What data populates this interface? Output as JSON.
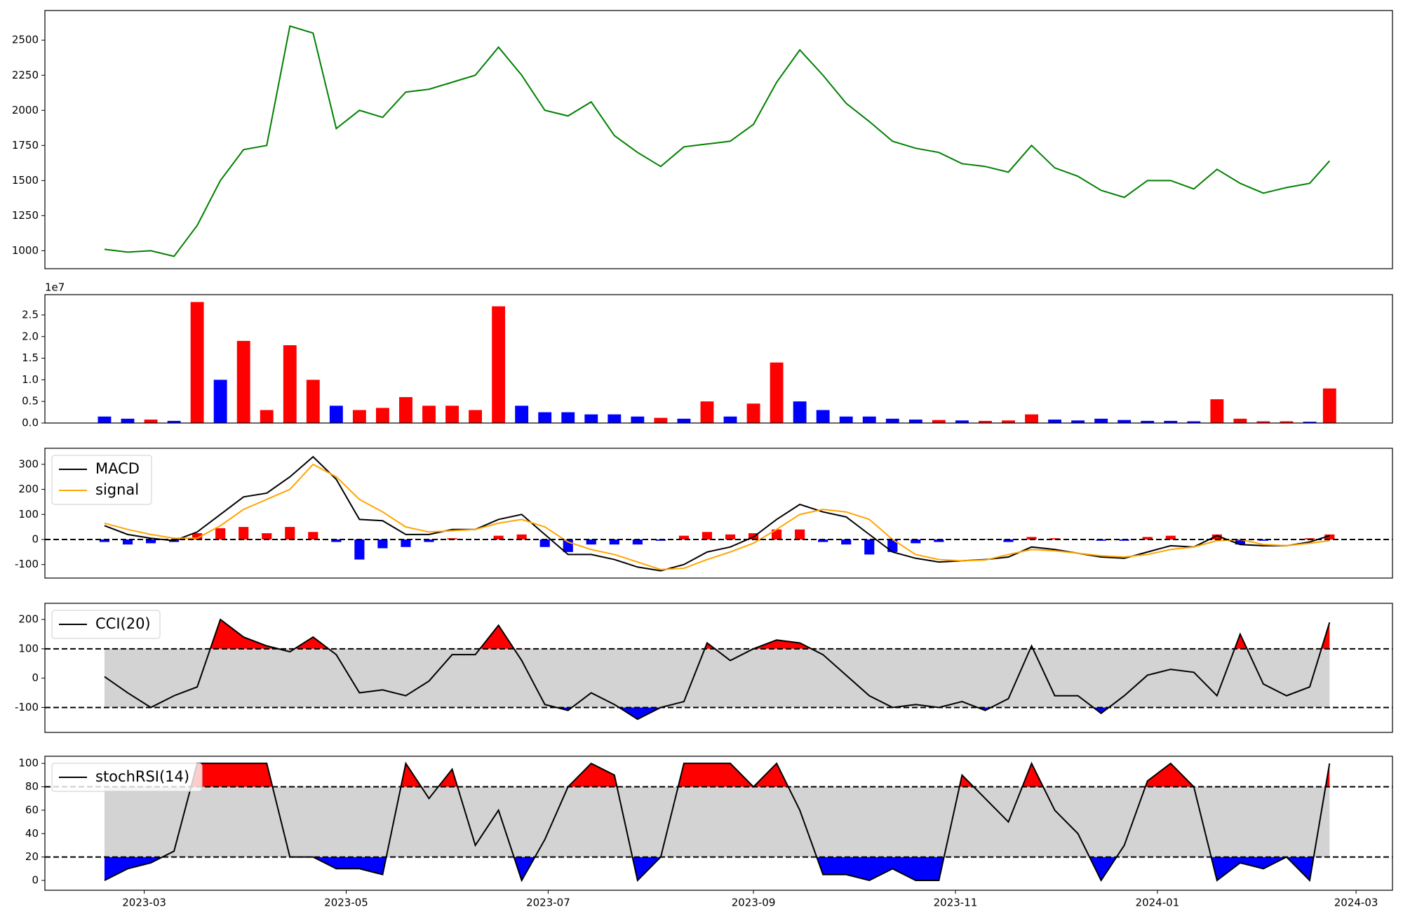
{
  "chart_data": [
    {
      "type": "line",
      "x": [
        19405,
        19412,
        19419,
        19426,
        19433,
        19440,
        19447,
        19454,
        19461,
        19468,
        19475,
        19482,
        19489,
        19496,
        19503,
        19510,
        19517,
        19524,
        19531,
        19538,
        19545,
        19552,
        19559,
        19566,
        19573,
        19580,
        19587,
        19594,
        19601,
        19608,
        19615,
        19622,
        19629,
        19636,
        19643,
        19650,
        19657,
        19664,
        19671,
        19678,
        19685,
        19692,
        19699,
        19706,
        19713,
        19720,
        19727,
        19734,
        19741,
        19748,
        19755,
        19762,
        19769,
        19775
      ],
      "xlim": [
        19387,
        19794
      ],
      "ylim": [
        872,
        2711
      ],
      "yticks": [
        1000,
        1250,
        1500,
        1750,
        2000,
        2250,
        2500
      ],
      "series": [
        {
          "color": "green",
          "values": [
            1010,
            990,
            1000,
            960,
            1180,
            1500,
            1720,
            1750,
            2600,
            2550,
            1870,
            2000,
            1950,
            2130,
            2150,
            2200,
            2250,
            2450,
            2250,
            2000,
            1960,
            2060,
            1820,
            1700,
            1600,
            1740,
            1760,
            1780,
            1900,
            2200,
            2430,
            2250,
            2050,
            1920,
            1780,
            1730,
            1700,
            1620,
            1600,
            1560,
            1750,
            1590,
            1530,
            1430,
            1380,
            1500,
            1500,
            1440,
            1580,
            1480,
            1410,
            1450,
            1480,
            1640
          ]
        }
      ]
    },
    {
      "type": "bar",
      "x": [
        19405,
        19412,
        19419,
        19426,
        19433,
        19440,
        19447,
        19454,
        19461,
        19468,
        19475,
        19482,
        19489,
        19496,
        19503,
        19510,
        19517,
        19524,
        19531,
        19538,
        19545,
        19552,
        19559,
        19566,
        19573,
        19580,
        19587,
        19594,
        19601,
        19608,
        19615,
        19622,
        19629,
        19636,
        19643,
        19650,
        19657,
        19664,
        19671,
        19678,
        19685,
        19692,
        19699,
        19706,
        19713,
        19720,
        19727,
        19734,
        19741,
        19748,
        19755,
        19762,
        19769,
        19775
      ],
      "xlim": [
        19387,
        19794
      ],
      "ylim": [
        0,
        29700000
      ],
      "offset_label": "1e7",
      "yticks": [
        {
          "value": 0,
          "label": "0.0"
        },
        {
          "value": 5000000,
          "label": "0.5"
        },
        {
          "value": 10000000,
          "label": "1.0"
        },
        {
          "value": 15000000,
          "label": "1.5"
        },
        {
          "value": 20000000,
          "label": "2.0"
        },
        {
          "value": 25000000,
          "label": "2.5"
        }
      ],
      "series": [
        {
          "values": [
            1500000,
            1000000,
            800000,
            500000,
            28000000,
            10000000,
            19000000,
            3000000,
            18000000,
            10000000,
            4000000,
            3000000,
            3500000,
            6000000,
            4000000,
            4000000,
            3000000,
            27000000,
            4000000,
            2500000,
            2500000,
            2000000,
            2000000,
            1500000,
            1200000,
            1000000,
            5000000,
            1500000,
            4500000,
            14000000,
            5000000,
            3000000,
            1500000,
            1500000,
            1000000,
            800000,
            700000,
            600000,
            500000,
            600000,
            2000000,
            800000,
            600000,
            1000000,
            700000,
            500000,
            500000,
            400000,
            5500000,
            1000000,
            400000,
            400000,
            300000,
            8000000
          ],
          "colors": [
            "blue",
            "blue",
            "red",
            "blue",
            "red",
            "blue",
            "red",
            "red",
            "red",
            "red",
            "blue",
            "red",
            "red",
            "red",
            "red",
            "red",
            "red",
            "red",
            "blue",
            "blue",
            "blue",
            "blue",
            "blue",
            "blue",
            "red",
            "blue",
            "red",
            "blue",
            "red",
            "red",
            "blue",
            "blue",
            "blue",
            "blue",
            "blue",
            "blue",
            "red",
            "blue",
            "red",
            "red",
            "red",
            "blue",
            "blue",
            "blue",
            "blue",
            "blue",
            "blue",
            "blue",
            "red",
            "red",
            "red",
            "red",
            "blue",
            "red"
          ]
        }
      ]
    },
    {
      "type": "line",
      "x": [
        19405,
        19412,
        19419,
        19426,
        19433,
        19440,
        19447,
        19454,
        19461,
        19468,
        19475,
        19482,
        19489,
        19496,
        19503,
        19510,
        19517,
        19524,
        19531,
        19538,
        19545,
        19552,
        19559,
        19566,
        19573,
        19580,
        19587,
        19594,
        19601,
        19608,
        19615,
        19622,
        19629,
        19636,
        19643,
        19650,
        19657,
        19664,
        19671,
        19678,
        19685,
        19692,
        19699,
        19706,
        19713,
        19720,
        19727,
        19734,
        19741,
        19748,
        19755,
        19762,
        19769,
        19775
      ],
      "xlim": [
        19387,
        19794
      ],
      "ylim": [
        -154,
        364
      ],
      "yticks": [
        -100,
        0,
        100,
        200,
        300
      ],
      "hlines": [
        0
      ],
      "legend": "upper left",
      "series": [
        {
          "type": "bar",
          "pos_color": "red",
          "neg_color": "blue",
          "values": [
            -10,
            -20,
            -15,
            -10,
            25,
            45,
            50,
            25,
            50,
            30,
            -10,
            -80,
            -35,
            -30,
            -10,
            5,
            0,
            15,
            20,
            -30,
            -50,
            -20,
            -20,
            -20,
            -5,
            15,
            30,
            20,
            25,
            40,
            40,
            -10,
            -20,
            -60,
            -50,
            -15,
            -10,
            0,
            2,
            -10,
            10,
            5,
            0,
            -5,
            -5,
            10,
            15,
            0,
            20,
            -20,
            -5,
            0,
            5,
            20
          ]
        },
        {
          "name": "MACD",
          "color": "black",
          "values": [
            55,
            20,
            5,
            -5,
            30,
            100,
            170,
            185,
            250,
            330,
            240,
            80,
            75,
            20,
            20,
            40,
            40,
            80,
            100,
            20,
            -60,
            -60,
            -80,
            -110,
            -125,
            -100,
            -50,
            -30,
            10,
            80,
            140,
            110,
            90,
            20,
            -50,
            -75,
            -90,
            -85,
            -80,
            -70,
            -30,
            -40,
            -55,
            -70,
            -75,
            -50,
            -25,
            -30,
            15,
            -20,
            -25,
            -25,
            -10,
            15
          ]
        },
        {
          "name": "signal",
          "color": "orange",
          "values": [
            65,
            40,
            20,
            5,
            5,
            55,
            120,
            160,
            200,
            300,
            250,
            160,
            110,
            50,
            30,
            35,
            40,
            65,
            80,
            50,
            -10,
            -40,
            -60,
            -90,
            -120,
            -115,
            -80,
            -50,
            -15,
            40,
            100,
            120,
            110,
            80,
            0,
            -60,
            -80,
            -85,
            -82,
            -60,
            -40,
            -45,
            -55,
            -65,
            -70,
            -60,
            -40,
            -30,
            -5,
            0,
            -20,
            -25,
            -15,
            -5
          ]
        }
      ]
    },
    {
      "type": "line",
      "x": [
        19405,
        19412,
        19419,
        19426,
        19433,
        19440,
        19447,
        19454,
        19461,
        19468,
        19475,
        19482,
        19489,
        19496,
        19503,
        19510,
        19517,
        19524,
        19531,
        19538,
        19545,
        19552,
        19559,
        19566,
        19573,
        19580,
        19587,
        19594,
        19601,
        19608,
        19615,
        19622,
        19629,
        19636,
        19643,
        19650,
        19657,
        19664,
        19671,
        19678,
        19685,
        19692,
        19699,
        19706,
        19713,
        19720,
        19727,
        19734,
        19741,
        19748,
        19755,
        19762,
        19769,
        19775
      ],
      "xlim": [
        19387,
        19794
      ],
      "ylim": [
        -185,
        255
      ],
      "yticks": [
        -100,
        0,
        100,
        200
      ],
      "bands": [
        -100,
        100
      ],
      "band_color": "lightgray",
      "fill_colors": [
        "red",
        "blue"
      ],
      "legend": "upper left",
      "series": [
        {
          "name": "CCI(20)",
          "color": "black",
          "values": [
            5,
            -50,
            -100,
            -60,
            -30,
            200,
            140,
            110,
            90,
            140,
            80,
            -50,
            -40,
            -60,
            -10,
            80,
            80,
            180,
            60,
            -90,
            -110,
            -50,
            -90,
            -140,
            -100,
            -80,
            120,
            60,
            100,
            130,
            120,
            80,
            10,
            -60,
            -100,
            -90,
            -100,
            -80,
            -110,
            -70,
            110,
            -60,
            -60,
            -120,
            -60,
            10,
            30,
            20,
            -60,
            150,
            -20,
            -60,
            -30,
            190
          ]
        }
      ]
    },
    {
      "type": "line",
      "x": [
        19405,
        19412,
        19419,
        19426,
        19433,
        19440,
        19447,
        19454,
        19461,
        19468,
        19475,
        19482,
        19489,
        19496,
        19503,
        19510,
        19517,
        19524,
        19531,
        19538,
        19545,
        19552,
        19559,
        19566,
        19573,
        19580,
        19587,
        19594,
        19601,
        19608,
        19615,
        19622,
        19629,
        19636,
        19643,
        19650,
        19657,
        19664,
        19671,
        19678,
        19685,
        19692,
        19699,
        19706,
        19713,
        19720,
        19727,
        19734,
        19741,
        19748,
        19755,
        19762,
        19769,
        19775
      ],
      "xlim": [
        19387,
        19794
      ],
      "ylim": [
        -8.4,
        106.1
      ],
      "yticks": [
        0,
        20,
        40,
        60,
        80,
        100
      ],
      "bands": [
        20,
        80
      ],
      "band_color": "lightgray",
      "fill_colors": [
        "red",
        "blue"
      ],
      "legend": "upper left",
      "xticks": [
        {
          "value": 19417,
          "label": "2023-03"
        },
        {
          "value": 19478,
          "label": "2023-05"
        },
        {
          "value": 19539,
          "label": "2023-07"
        },
        {
          "value": 19601,
          "label": "2023-09"
        },
        {
          "value": 19662,
          "label": "2023-11"
        },
        {
          "value": 19723,
          "label": "2024-01"
        },
        {
          "value": 19783,
          "label": "2024-03"
        }
      ],
      "series": [
        {
          "name": "stochRSI(14)",
          "color": "black",
          "values": [
            0,
            10,
            15,
            25,
            100,
            100,
            100,
            100,
            20,
            20,
            10,
            10,
            5,
            100,
            70,
            95,
            30,
            60,
            0,
            35,
            80,
            100,
            90,
            0,
            20,
            100,
            100,
            100,
            80,
            100,
            60,
            5,
            5,
            0,
            10,
            0,
            0,
            90,
            70,
            50,
            100,
            60,
            40,
            0,
            30,
            85,
            100,
            80,
            0,
            15,
            10,
            20,
            0,
            100
          ]
        }
      ]
    }
  ]
}
